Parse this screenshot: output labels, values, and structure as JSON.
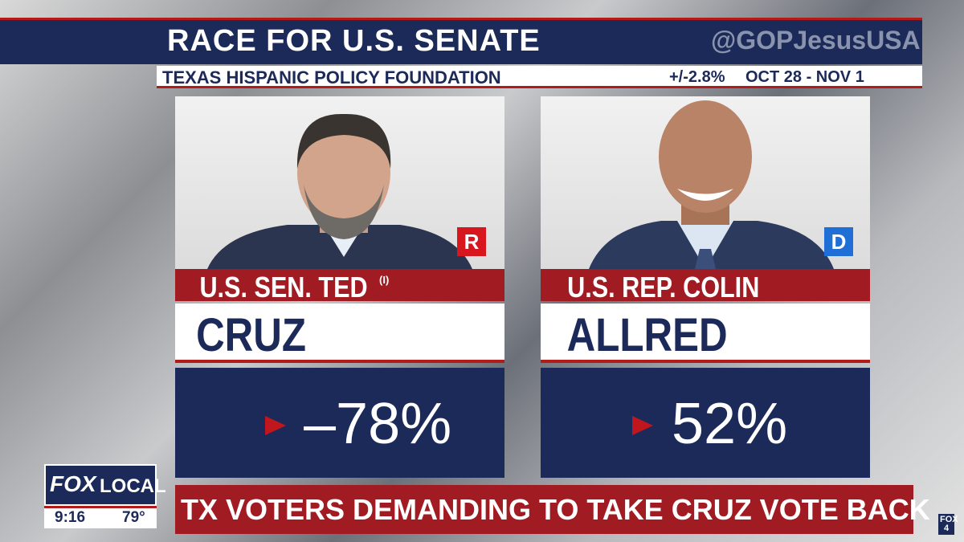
{
  "header": {
    "title": "RACE FOR U.S. SENATE",
    "watermark": "@GOPJesusUSA",
    "source": "TEXAS HISPANIC POLICY FOUNDATION",
    "margin_of_error": "+/-2.8%",
    "dates": "OCT 28 - NOV 1"
  },
  "candidates": [
    {
      "first_line": "U.S. SEN. TED",
      "incumbent_mark": "(I)",
      "last_name": "CRUZ",
      "party": "R",
      "result": "–78%"
    },
    {
      "first_line": "U.S. REP. COLIN",
      "last_name": "ALLRED",
      "party": "D",
      "result": "52%"
    }
  ],
  "station": {
    "brand": "FOX",
    "program": "LOCAL",
    "time": "9:16",
    "temperature": "79°",
    "corner_logo": "FOX 4"
  },
  "ticker": "TX VOTERS DEMANDING TO TAKE CRUZ VOTE BACK"
}
